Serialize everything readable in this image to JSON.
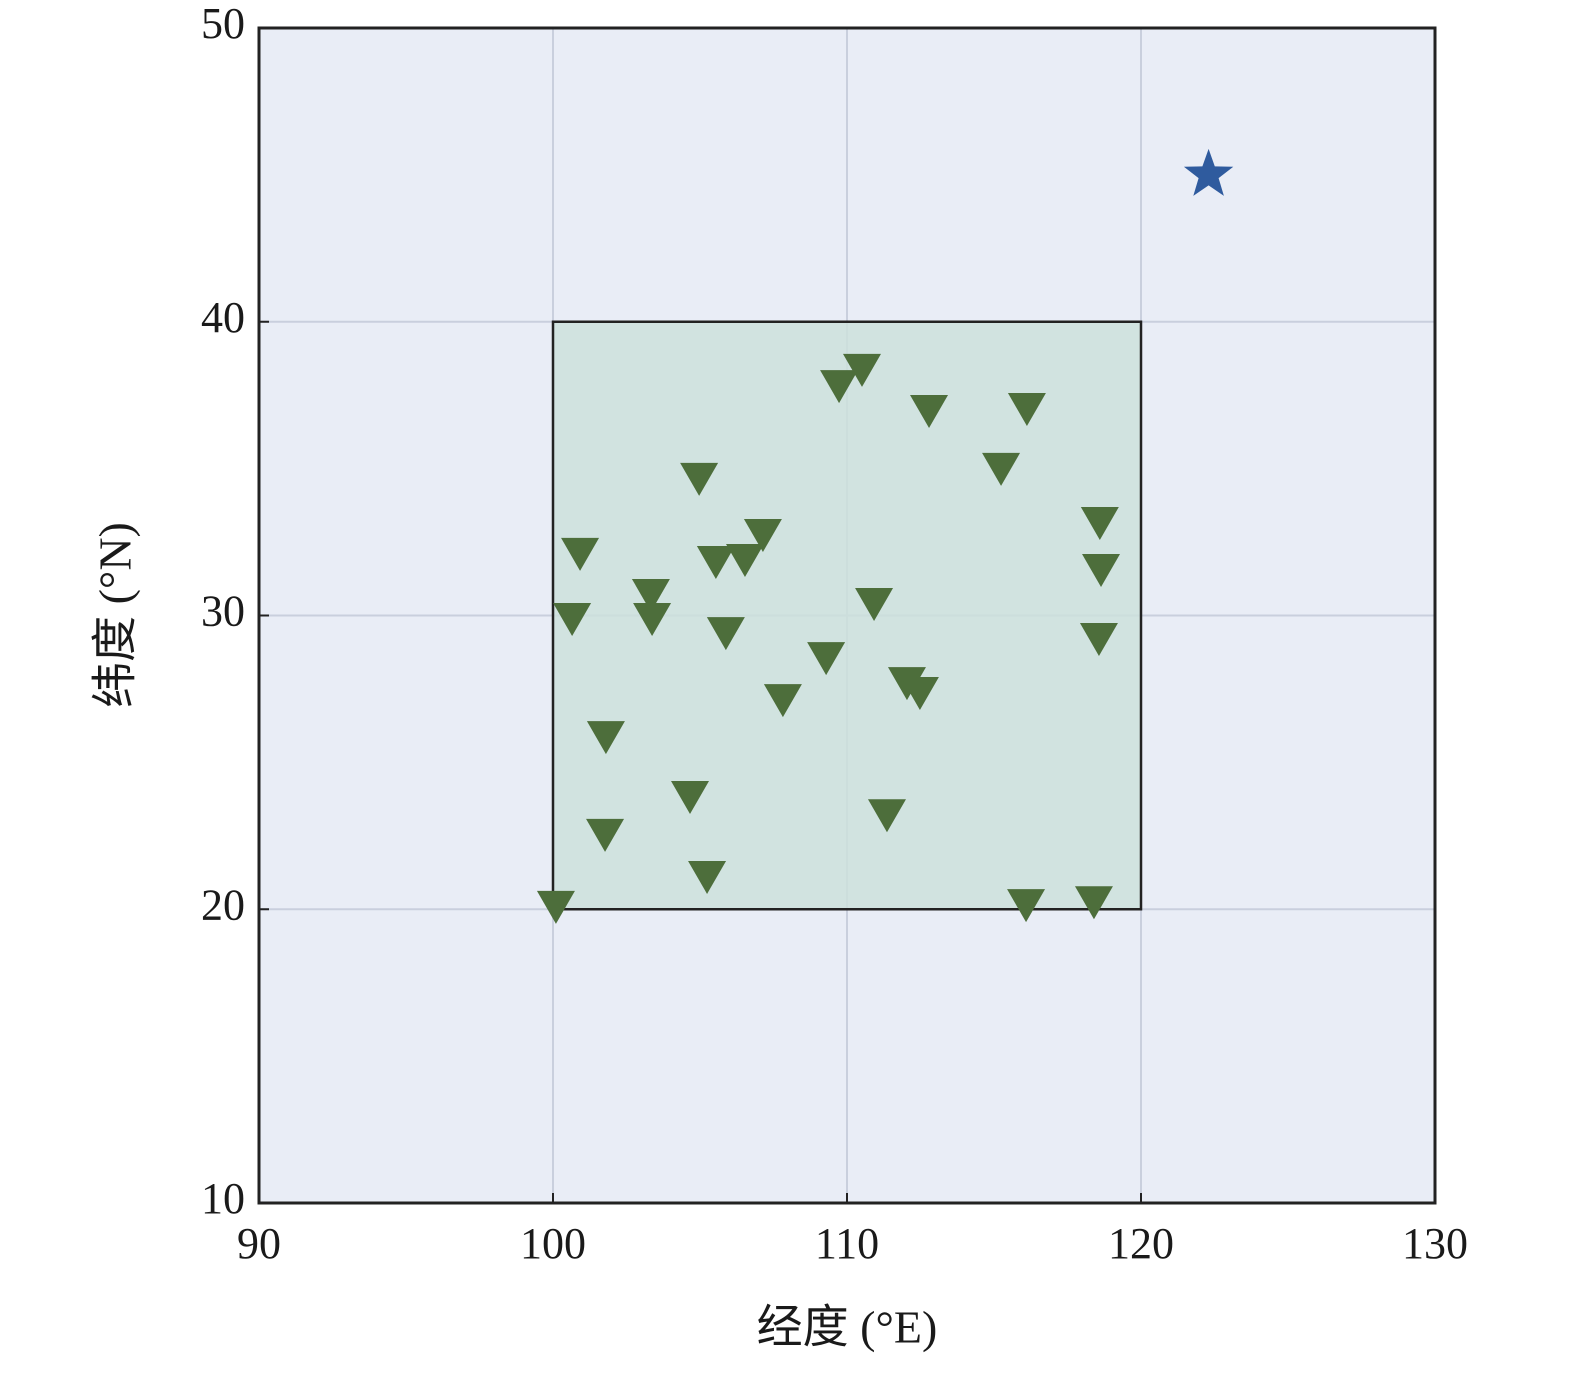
{
  "chart_data": {
    "type": "scatter",
    "x_label": "经度 (°E)",
    "y_label": "纬度 (°N)",
    "xlim": [
      90,
      130
    ],
    "ylim": [
      10,
      50
    ],
    "xticks": [
      90,
      100,
      110,
      120,
      130
    ],
    "yticks": [
      10,
      20,
      30,
      40,
      50
    ],
    "grid": true,
    "region": {
      "xlim": [
        100,
        120
      ],
      "ylim": [
        20,
        40
      ],
      "color": "#cde0dc"
    },
    "series": [
      {
        "marker": "triangle-down",
        "color": "#4d6e3b",
        "x": [
          100.1,
          100.65,
          100.92,
          101.8,
          101.77,
          103.33,
          103.37,
          104.97,
          104.66,
          105.24,
          105.54,
          105.88,
          106.53,
          107.14,
          107.82,
          109.29,
          109.73,
          110.51,
          110.92,
          111.36,
          112.04,
          112.48,
          112.79,
          115.24,
          116.12,
          116.09,
          118.4,
          118.6,
          118.64,
          118.57
        ],
        "y": [
          20.08,
          29.88,
          32.1,
          25.86,
          22.53,
          30.7,
          29.88,
          34.65,
          23.82,
          21.1,
          31.82,
          29.4,
          31.89,
          32.74,
          27.12,
          28.55,
          37.81,
          38.36,
          30.39,
          23.2,
          27.7,
          27.36,
          36.96,
          34.99,
          37.03,
          20.14,
          20.24,
          33.15,
          31.55,
          29.2
        ]
      },
      {
        "marker": "star",
        "color": "#2f5b9e",
        "x": [
          122.3
        ],
        "y": [
          45.0
        ]
      }
    ]
  }
}
